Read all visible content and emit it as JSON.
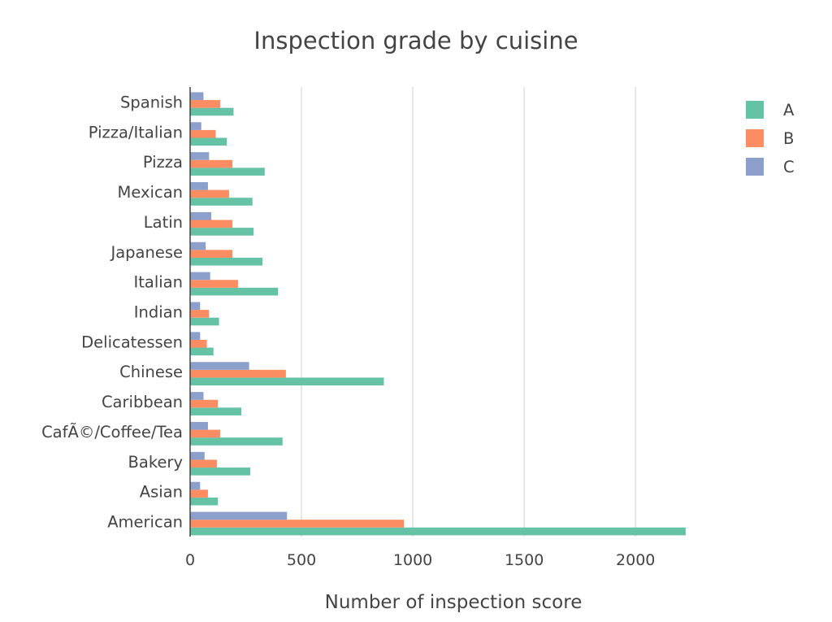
{
  "chart_data": {
    "type": "bar",
    "orientation": "horizontal",
    "title": "Inspection grade by cuisine",
    "xlabel": "Number of inspection score",
    "ylabel": "",
    "xlim": [
      0,
      2240
    ],
    "xticks": [
      0,
      500,
      1000,
      1500,
      2000
    ],
    "grid": true,
    "legend_position": "top-right",
    "categories": [
      "American",
      "Asian",
      "Bakery",
      "CafÃ©/Coffee/Tea",
      "Caribbean",
      "Chinese",
      "Delicatessen",
      "Indian",
      "Italian",
      "Japanese",
      "Latin",
      "Mexican",
      "Pizza",
      "Pizza/Italian",
      "Spanish"
    ],
    "series": [
      {
        "name": "A",
        "color": "#66c2a5",
        "values": [
          2225,
          125,
          270,
          415,
          230,
          870,
          105,
          130,
          395,
          325,
          285,
          280,
          335,
          165,
          195
        ]
      },
      {
        "name": "B",
        "color": "#fc8d62",
        "values": [
          960,
          80,
          120,
          135,
          125,
          430,
          75,
          85,
          215,
          190,
          190,
          175,
          190,
          115,
          135
        ]
      },
      {
        "name": "C",
        "color": "#8da0cb",
        "values": [
          435,
          45,
          65,
          80,
          60,
          265,
          45,
          45,
          90,
          70,
          95,
          80,
          85,
          50,
          60
        ]
      }
    ]
  }
}
